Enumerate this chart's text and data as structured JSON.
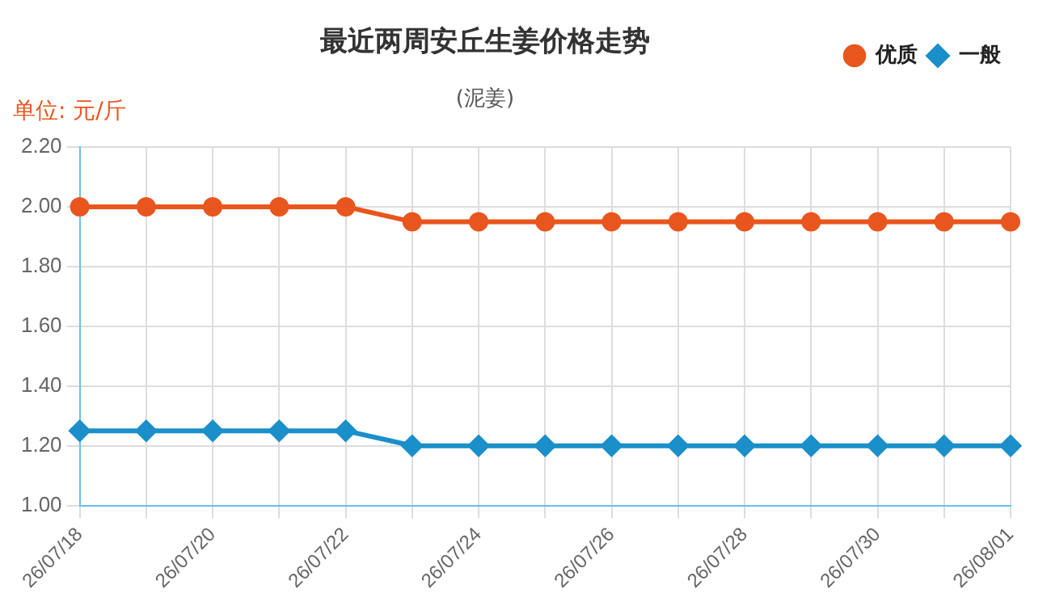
{
  "chart_data": {
    "type": "line",
    "title": "最近两周安丘生姜价格走势",
    "subtitle": "(泥姜)",
    "ylabel": "单位: 元/斤",
    "categories": [
      "26/07/18",
      null,
      "26/07/20",
      null,
      "26/07/22",
      null,
      "26/07/24",
      null,
      "26/07/26",
      null,
      "26/07/28",
      null,
      "26/07/30",
      null,
      "26/08/01"
    ],
    "series": [
      {
        "name": "优质",
        "color": "#e8561e",
        "marker": "circle",
        "values": [
          2.0,
          2.0,
          2.0,
          2.0,
          2.0,
          1.95,
          1.95,
          1.95,
          1.95,
          1.95,
          1.95,
          1.95,
          1.95,
          1.95,
          1.95
        ]
      },
      {
        "name": "一般",
        "color": "#1a8fc9",
        "marker": "diamond",
        "values": [
          1.25,
          1.25,
          1.25,
          1.25,
          1.25,
          1.2,
          1.2,
          1.2,
          1.2,
          1.2,
          1.2,
          1.2,
          1.2,
          1.2,
          1.2
        ]
      }
    ],
    "ylim": [
      1.0,
      2.2
    ],
    "yticks": [
      {
        "value": 1.0,
        "label": "1.00"
      },
      {
        "value": 1.2,
        "label": "1.20"
      },
      {
        "value": 1.4,
        "label": "1.40"
      },
      {
        "value": 1.6,
        "label": "1.60"
      },
      {
        "value": 1.8,
        "label": "1.80"
      },
      {
        "value": 2.0,
        "label": "2.00"
      },
      {
        "value": 2.2,
        "label": "2.20"
      }
    ],
    "grid": true,
    "legend": "top right",
    "line_style": "solid"
  }
}
